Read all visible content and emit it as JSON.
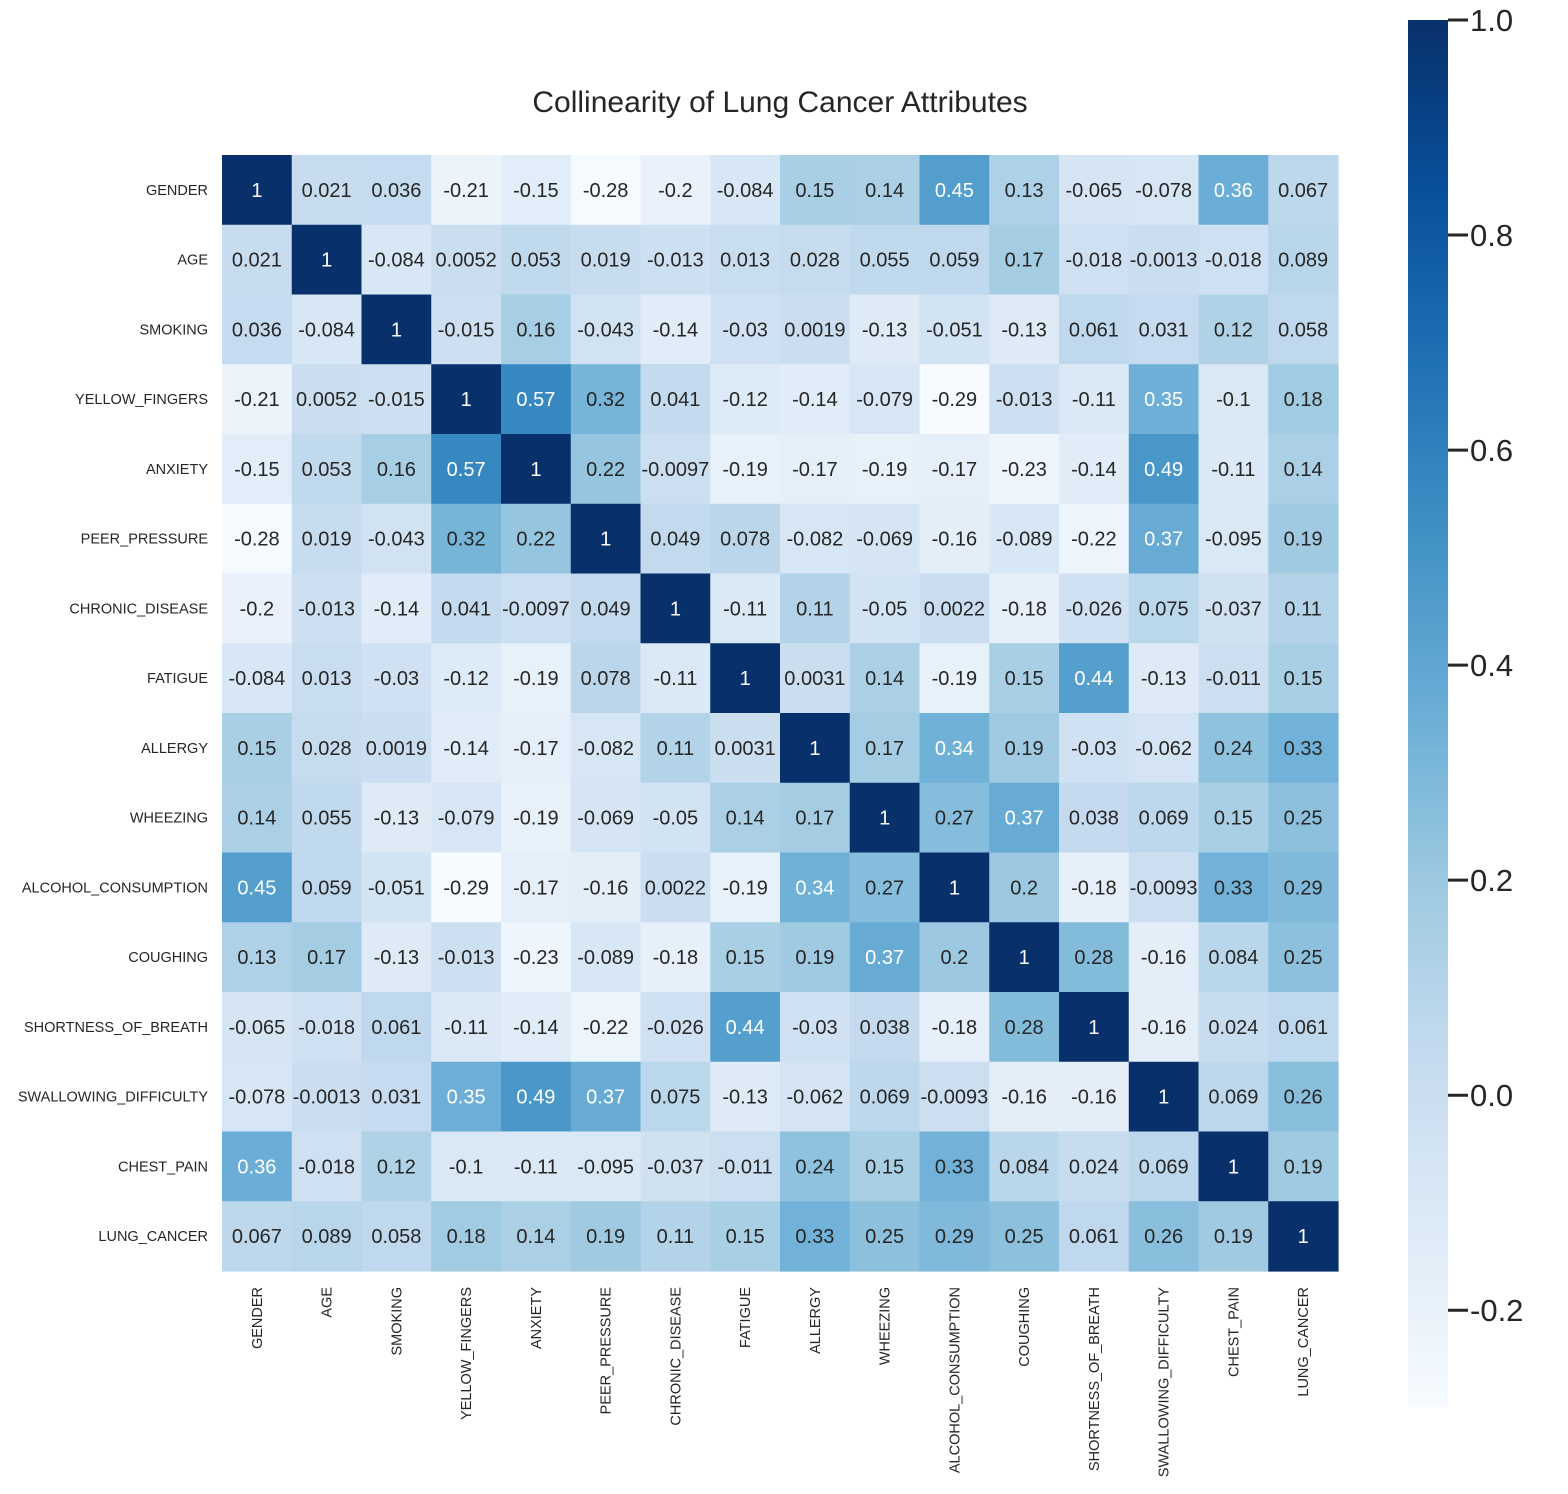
{
  "chart_data": {
    "type": "heatmap",
    "title": "Collinearity of Lung Cancer Attributes",
    "xlabel": "",
    "ylabel": "",
    "labels": [
      "GENDER",
      "AGE",
      "SMOKING",
      "YELLOW_FINGERS",
      "ANXIETY",
      "PEER_PRESSURE",
      "CHRONIC_DISEASE",
      "FATIGUE",
      "ALLERGY",
      "WHEEZING",
      "ALCOHOL_CONSUMPTION",
      "COUGHING",
      "SHORTNESS_OF_BREATH",
      "SWALLOWING_DIFFICULTY",
      "CHEST_PAIN",
      "LUNG_CANCER"
    ],
    "values": [
      [
        "1",
        "0.021",
        "0.036",
        "-0.21",
        "-0.15",
        "-0.28",
        "-0.2",
        "-0.084",
        "0.15",
        "0.14",
        "0.45",
        "0.13",
        "-0.065",
        "-0.078",
        "0.36",
        "0.067"
      ],
      [
        "0.021",
        "1",
        "-0.084",
        "0.0052",
        "0.053",
        "0.019",
        "-0.013",
        "0.013",
        "0.028",
        "0.055",
        "0.059",
        "0.17",
        "-0.018",
        "-0.0013",
        "-0.018",
        "0.089"
      ],
      [
        "0.036",
        "-0.084",
        "1",
        "-0.015",
        "0.16",
        "-0.043",
        "-0.14",
        "-0.03",
        "0.0019",
        "-0.13",
        "-0.051",
        "-0.13",
        "0.061",
        "0.031",
        "0.12",
        "0.058"
      ],
      [
        "-0.21",
        "0.0052",
        "-0.015",
        "1",
        "0.57",
        "0.32",
        "0.041",
        "-0.12",
        "-0.14",
        "-0.079",
        "-0.29",
        "-0.013",
        "-0.11",
        "0.35",
        "-0.1",
        "0.18"
      ],
      [
        "-0.15",
        "0.053",
        "0.16",
        "0.57",
        "1",
        "0.22",
        "-0.0097",
        "-0.19",
        "-0.17",
        "-0.19",
        "-0.17",
        "-0.23",
        "-0.14",
        "0.49",
        "-0.11",
        "0.14"
      ],
      [
        "-0.28",
        "0.019",
        "-0.043",
        "0.32",
        "0.22",
        "1",
        "0.049",
        "0.078",
        "-0.082",
        "-0.069",
        "-0.16",
        "-0.089",
        "-0.22",
        "0.37",
        "-0.095",
        "0.19"
      ],
      [
        "-0.2",
        "-0.013",
        "-0.14",
        "0.041",
        "-0.0097",
        "0.049",
        "1",
        "-0.11",
        "0.11",
        "-0.05",
        "0.0022",
        "-0.18",
        "-0.026",
        "0.075",
        "-0.037",
        "0.11"
      ],
      [
        "-0.084",
        "0.013",
        "-0.03",
        "-0.12",
        "-0.19",
        "0.078",
        "-0.11",
        "1",
        "0.0031",
        "0.14",
        "-0.19",
        "0.15",
        "0.44",
        "-0.13",
        "-0.011",
        "0.15"
      ],
      [
        "0.15",
        "0.028",
        "0.0019",
        "-0.14",
        "-0.17",
        "-0.082",
        "0.11",
        "0.0031",
        "1",
        "0.17",
        "0.34",
        "0.19",
        "-0.03",
        "-0.062",
        "0.24",
        "0.33"
      ],
      [
        "0.14",
        "0.055",
        "-0.13",
        "-0.079",
        "-0.19",
        "-0.069",
        "-0.05",
        "0.14",
        "0.17",
        "1",
        "0.27",
        "0.37",
        "0.038",
        "0.069",
        "0.15",
        "0.25"
      ],
      [
        "0.45",
        "0.059",
        "-0.051",
        "-0.29",
        "-0.17",
        "-0.16",
        "0.0022",
        "-0.19",
        "0.34",
        "0.27",
        "1",
        "0.2",
        "-0.18",
        "-0.0093",
        "0.33",
        "0.29"
      ],
      [
        "0.13",
        "0.17",
        "-0.13",
        "-0.013",
        "-0.23",
        "-0.089",
        "-0.18",
        "0.15",
        "0.19",
        "0.37",
        "0.2",
        "1",
        "0.28",
        "-0.16",
        "0.084",
        "0.25"
      ],
      [
        "-0.065",
        "-0.018",
        "0.061",
        "-0.11",
        "-0.14",
        "-0.22",
        "-0.026",
        "0.44",
        "-0.03",
        "0.038",
        "-0.18",
        "0.28",
        "1",
        "-0.16",
        "0.024",
        "0.061"
      ],
      [
        "-0.078",
        "-0.0013",
        "0.031",
        "0.35",
        "0.49",
        "0.37",
        "0.075",
        "-0.13",
        "-0.062",
        "0.069",
        "-0.0093",
        "-0.16",
        "-0.16",
        "1",
        "0.069",
        "0.26"
      ],
      [
        "0.36",
        "-0.018",
        "0.12",
        "-0.1",
        "-0.11",
        "-0.095",
        "-0.037",
        "-0.011",
        "0.24",
        "0.15",
        "0.33",
        "0.084",
        "0.024",
        "0.069",
        "1",
        "0.19"
      ],
      [
        "0.067",
        "0.089",
        "0.058",
        "0.18",
        "0.14",
        "0.19",
        "0.11",
        "0.15",
        "0.33",
        "0.25",
        "0.29",
        "0.25",
        "0.061",
        "0.26",
        "0.19",
        "1"
      ]
    ],
    "colormap": "Blues",
    "vmin": -0.29,
    "vmax": 1.0,
    "colorbar_ticks": [
      "1.0",
      "0.8",
      "0.6",
      "0.4",
      "0.2",
      "0.0",
      "-0.2"
    ],
    "colorbar_tick_values": [
      1.0,
      0.8,
      0.6,
      0.4,
      0.2,
      0.0,
      -0.2
    ],
    "grid": false,
    "legend": "colorbar-right"
  }
}
